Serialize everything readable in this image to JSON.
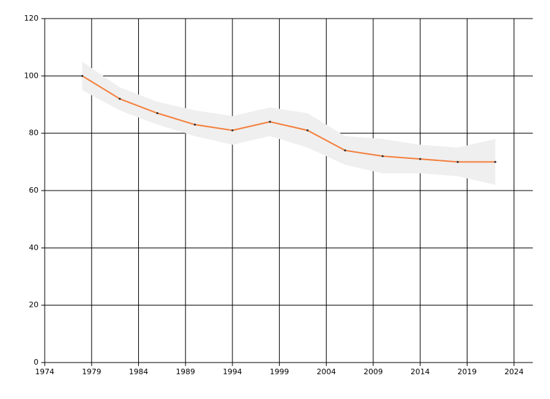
{
  "chart_data": {
    "type": "line",
    "x": [
      1978,
      1982,
      1986,
      1990,
      1994,
      1998,
      2002,
      2006,
      2010,
      2014,
      2018,
      2022
    ],
    "series": [
      {
        "color": "#f47f3c",
        "band_color": "#efefef",
        "marker_color": "#333333",
        "values": [
          100,
          92,
          87,
          83,
          81,
          84,
          81,
          74,
          72,
          71,
          70,
          70
        ],
        "upper": [
          105,
          96,
          91,
          88,
          86,
          89,
          87,
          79,
          78,
          76,
          75,
          78
        ],
        "lower": [
          95,
          88,
          83,
          79,
          76,
          79,
          75,
          69,
          66,
          66,
          65,
          62
        ]
      }
    ],
    "xlim": [
      1974,
      2026
    ],
    "xticks": [
      1974,
      1979,
      1984,
      1989,
      1994,
      1999,
      2004,
      2009,
      2014,
      2019,
      2024
    ],
    "ylim": [
      0,
      120
    ],
    "yticks": [
      0,
      20,
      40,
      60,
      80,
      100,
      120
    ],
    "grid": true
  }
}
